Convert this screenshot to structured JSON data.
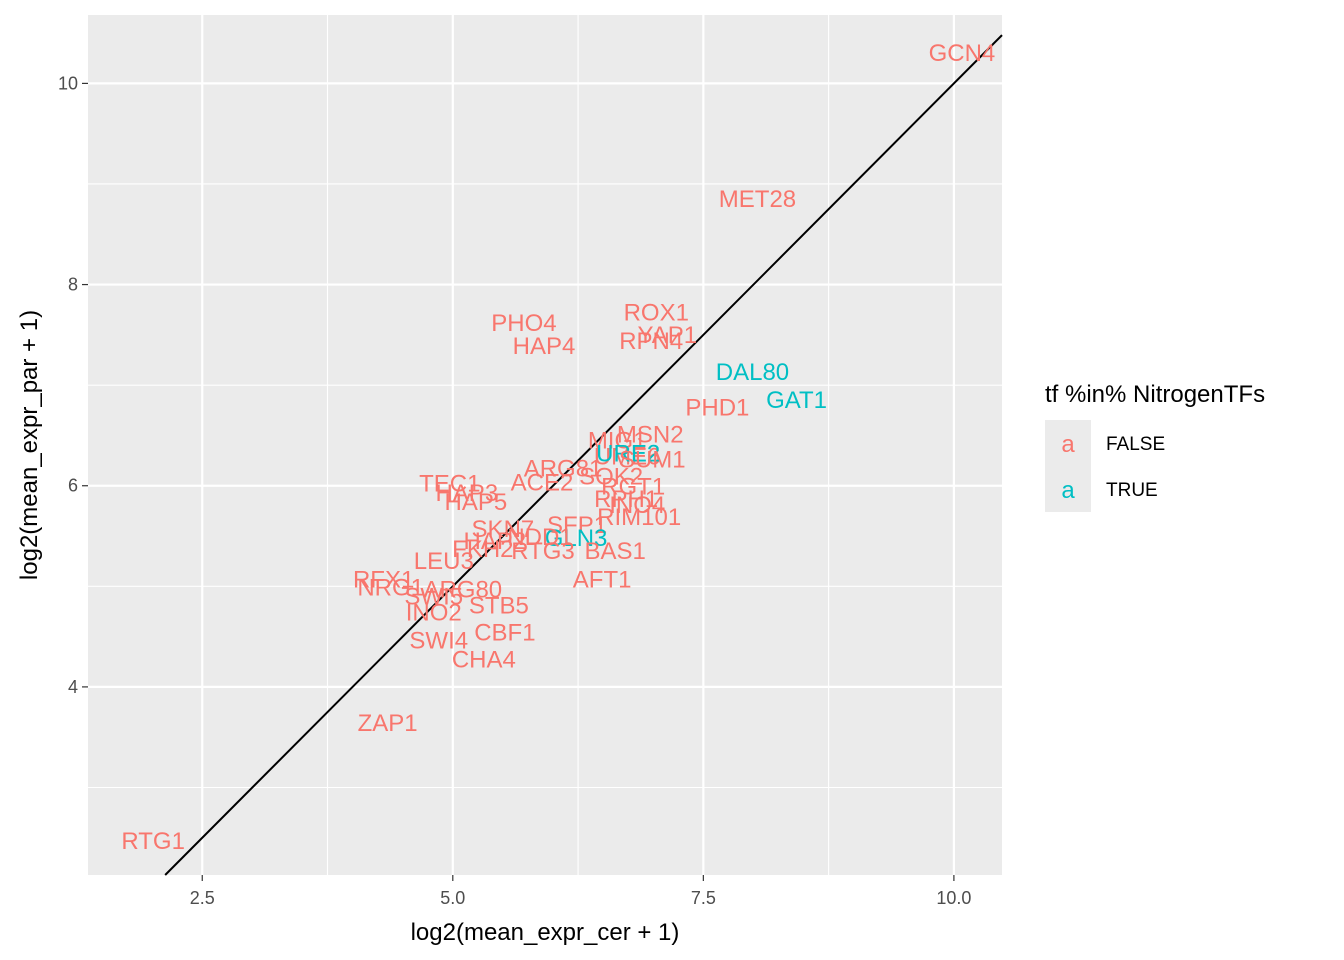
{
  "chart_data": {
    "type": "scatter",
    "xlabel": "log2(mean_expr_cer + 1)",
    "ylabel": "log2(mean_expr_par + 1)",
    "xlim": [
      1.36,
      10.48
    ],
    "ylim": [
      2.13,
      10.68
    ],
    "x_ticks": [
      2.5,
      5.0,
      7.5,
      10.0
    ],
    "x_tick_labels": [
      "2.5",
      "5.0",
      "7.5",
      "10.0"
    ],
    "y_ticks": [
      4,
      6,
      8,
      10
    ],
    "y_tick_labels": [
      "4",
      "6",
      "8",
      "10"
    ],
    "grid": true,
    "reference_line": {
      "slope": 1,
      "intercept": 0
    },
    "legend": {
      "title": "tf %in% NitrogenTFs",
      "placement": "right",
      "key_glyph": "a",
      "entries": [
        {
          "label": "FALSE",
          "color": "#F8766D"
        },
        {
          "label": "TRUE",
          "color": "#00BFC4"
        }
      ]
    },
    "points": [
      {
        "label": "GCN4",
        "x": 10.08,
        "y": 10.3,
        "group": "FALSE"
      },
      {
        "label": "MET28",
        "x": 8.04,
        "y": 8.85,
        "group": "FALSE"
      },
      {
        "label": "ROX1",
        "x": 7.03,
        "y": 7.72,
        "group": "FALSE"
      },
      {
        "label": "YAP1",
        "x": 7.14,
        "y": 7.5,
        "group": "FALSE"
      },
      {
        "label": "RPN4",
        "x": 6.98,
        "y": 7.44,
        "group": "FALSE"
      },
      {
        "label": "PHO4",
        "x": 5.71,
        "y": 7.62,
        "group": "FALSE"
      },
      {
        "label": "HAP4",
        "x": 5.91,
        "y": 7.39,
        "group": "FALSE"
      },
      {
        "label": "DAL80",
        "x": 7.99,
        "y": 7.13,
        "group": "TRUE"
      },
      {
        "label": "GAT1",
        "x": 8.43,
        "y": 6.85,
        "group": "TRUE"
      },
      {
        "label": "PHD1",
        "x": 7.64,
        "y": 6.78,
        "group": "FALSE"
      },
      {
        "label": "MSN2",
        "x": 6.97,
        "y": 6.51,
        "group": "FALSE"
      },
      {
        "label": "MIG1",
        "x": 6.64,
        "y": 6.45,
        "group": "FALSE"
      },
      {
        "label": "UME6",
        "x": 6.74,
        "y": 6.29,
        "group": "FALSE"
      },
      {
        "label": "URE2",
        "x": 6.75,
        "y": 6.32,
        "group": "TRUE"
      },
      {
        "label": "SUM1",
        "x": 6.99,
        "y": 6.26,
        "group": "FALSE"
      },
      {
        "label": "ARG81",
        "x": 6.1,
        "y": 6.17,
        "group": "FALSE"
      },
      {
        "label": "ACE2",
        "x": 5.89,
        "y": 6.03,
        "group": "FALSE"
      },
      {
        "label": "SOK2",
        "x": 6.58,
        "y": 6.09,
        "group": "FALSE"
      },
      {
        "label": "RGT1",
        "x": 6.8,
        "y": 5.99,
        "group": "FALSE"
      },
      {
        "label": "TEC1",
        "x": 4.97,
        "y": 6.02,
        "group": "FALSE"
      },
      {
        "label": "HAP3",
        "x": 5.14,
        "y": 5.93,
        "group": "FALSE"
      },
      {
        "label": "HAP5",
        "x": 5.23,
        "y": 5.84,
        "group": "FALSE"
      },
      {
        "label": "INO4",
        "x": 6.84,
        "y": 5.81,
        "group": "FALSE"
      },
      {
        "label": "RPH1",
        "x": 6.73,
        "y": 5.87,
        "group": "FALSE"
      },
      {
        "label": "RIM101",
        "x": 6.86,
        "y": 5.69,
        "group": "FALSE"
      },
      {
        "label": "SKN7",
        "x": 5.5,
        "y": 5.57,
        "group": "FALSE"
      },
      {
        "label": "SFP1",
        "x": 6.24,
        "y": 5.61,
        "group": "FALSE"
      },
      {
        "label": "GLN3",
        "x": 6.23,
        "y": 5.48,
        "group": "TRUE"
      },
      {
        "label": "HAP2",
        "x": 5.42,
        "y": 5.45,
        "group": "FALSE"
      },
      {
        "label": "NDD1",
        "x": 5.87,
        "y": 5.49,
        "group": "FALSE"
      },
      {
        "label": "FKH2",
        "x": 5.3,
        "y": 5.37,
        "group": "FALSE"
      },
      {
        "label": "RTG3",
        "x": 5.9,
        "y": 5.35,
        "group": "FALSE"
      },
      {
        "label": "BAS1",
        "x": 6.62,
        "y": 5.35,
        "group": "FALSE"
      },
      {
        "label": "LEU3",
        "x": 4.91,
        "y": 5.25,
        "group": "FALSE"
      },
      {
        "label": "AFT1",
        "x": 6.49,
        "y": 5.07,
        "group": "FALSE"
      },
      {
        "label": "RFX1",
        "x": 4.31,
        "y": 5.07,
        "group": "FALSE"
      },
      {
        "label": "NRG1",
        "x": 4.38,
        "y": 4.99,
        "group": "FALSE"
      },
      {
        "label": "ARG80",
        "x": 5.1,
        "y": 4.97,
        "group": "FALSE"
      },
      {
        "label": "SWI5",
        "x": 4.81,
        "y": 4.9,
        "group": "FALSE"
      },
      {
        "label": "STB5",
        "x": 5.46,
        "y": 4.81,
        "group": "FALSE"
      },
      {
        "label": "INO2",
        "x": 4.81,
        "y": 4.74,
        "group": "FALSE"
      },
      {
        "label": "CBF1",
        "x": 5.52,
        "y": 4.54,
        "group": "FALSE"
      },
      {
        "label": "SWI4",
        "x": 4.86,
        "y": 4.46,
        "group": "FALSE"
      },
      {
        "label": "CHA4",
        "x": 5.31,
        "y": 4.27,
        "group": "FALSE"
      },
      {
        "label": "ZAP1",
        "x": 4.35,
        "y": 3.64,
        "group": "FALSE"
      },
      {
        "label": "RTG1",
        "x": 2.01,
        "y": 2.47,
        "group": "FALSE"
      }
    ]
  }
}
